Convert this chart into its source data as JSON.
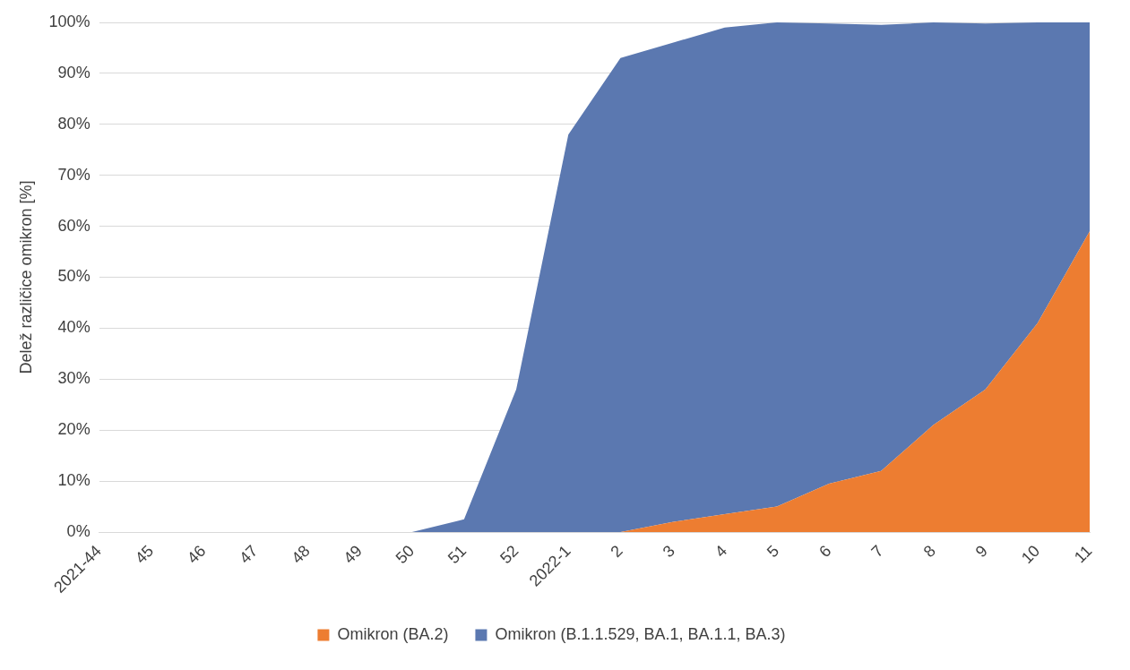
{
  "chart_data": {
    "type": "area",
    "stacked": true,
    "ylabel": "Delež različice omikron [%]",
    "categories": [
      "2021-44",
      "45",
      "46",
      "47",
      "48",
      "49",
      "50",
      "51",
      "52",
      "2022-1",
      "2",
      "3",
      "4",
      "5",
      "6",
      "7",
      "8",
      "9",
      "10",
      "11"
    ],
    "series": [
      {
        "name": "Omikron (BA.2)",
        "color": "#ed7d31",
        "values": [
          0,
          0,
          0,
          0,
          0,
          0,
          0,
          0,
          0,
          0,
          0,
          2,
          3.5,
          5,
          9.5,
          12,
          21,
          28,
          41,
          59
        ]
      },
      {
        "name": "Omikron (B.1.1.529, BA.1, BA.1.1, BA.3)",
        "color": "#5b78b0",
        "values": [
          0,
          0,
          0,
          0,
          0,
          0,
          0,
          2.5,
          28,
          78,
          93,
          94,
          95.5,
          95,
          90.3,
          87.5,
          79,
          71.8,
          59,
          41
        ]
      }
    ],
    "ylim": [
      0,
      100
    ],
    "yticks": [
      {
        "value": 0,
        "label": "0%"
      },
      {
        "value": 10,
        "label": "10%"
      },
      {
        "value": 20,
        "label": "20%"
      },
      {
        "value": 30,
        "label": "30%"
      },
      {
        "value": 40,
        "label": "40%"
      },
      {
        "value": 50,
        "label": "50%"
      },
      {
        "value": 60,
        "label": "60%"
      },
      {
        "value": 70,
        "label": "70%"
      },
      {
        "value": 80,
        "label": "80%"
      },
      {
        "value": 90,
        "label": "90%"
      },
      {
        "value": 100,
        "label": "100%"
      }
    ],
    "grid": "y",
    "legend": "bottom",
    "marker": "none"
  }
}
